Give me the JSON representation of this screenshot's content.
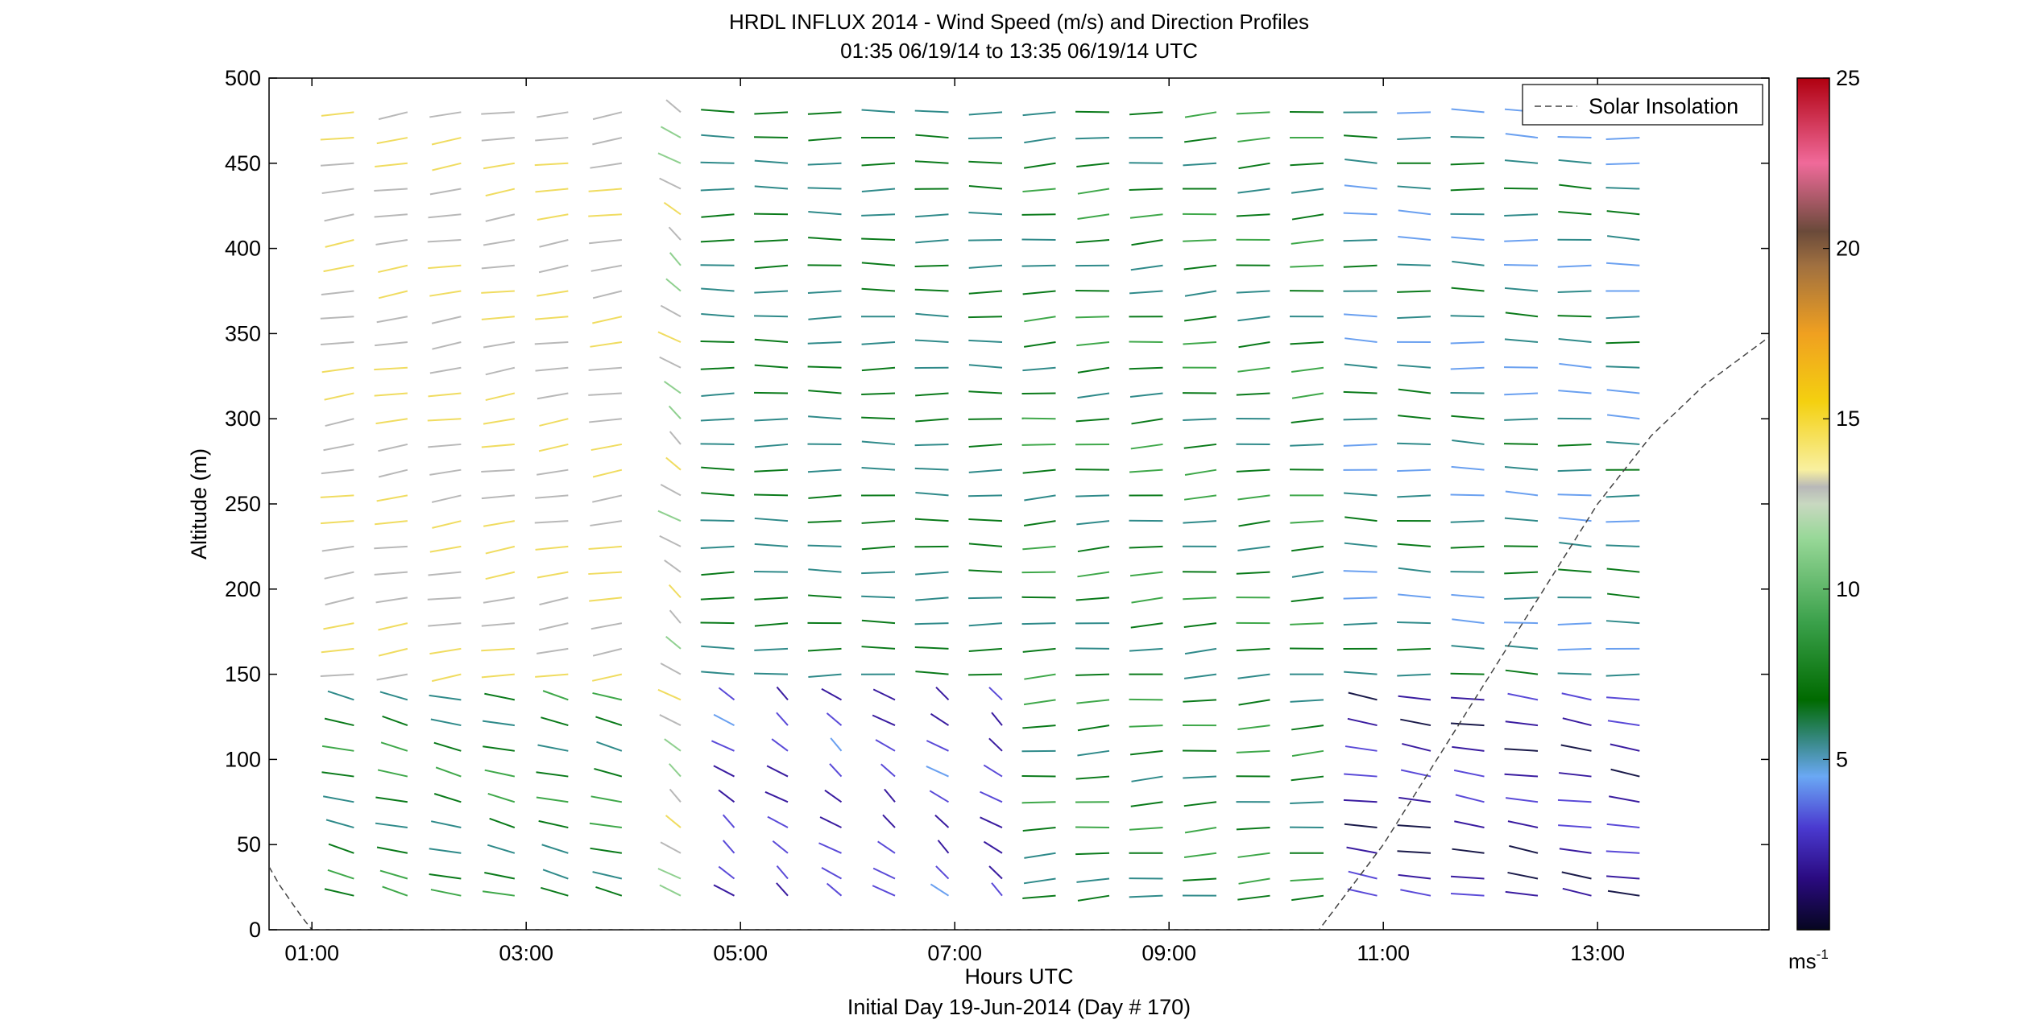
{
  "chart_data": {
    "type": "wind-barb-profile",
    "title": "HRDL INFLUX 2014 - Wind Speed (m/s) and Direction Profiles",
    "subtitle": "01:35 06/19/14 to 13:35 06/19/14  UTC",
    "xlabel": "Hours UTC",
    "xlabel2": "Initial Day 19-Jun-2014 (Day # 170)",
    "ylabel": "Altitude (m)",
    "x_ticks": [
      "01:00",
      "03:00",
      "05:00",
      "07:00",
      "09:00",
      "11:00",
      "13:00"
    ],
    "x_tick_hours": [
      1,
      3,
      5,
      7,
      9,
      11,
      13
    ],
    "xlim_hours": [
      0.6,
      14.6
    ],
    "y_ticks": [
      0,
      50,
      100,
      150,
      200,
      250,
      300,
      350,
      400,
      450,
      500
    ],
    "ylim": [
      0,
      500
    ],
    "legend": {
      "label": "Solar Insolation",
      "placement": "top-right"
    },
    "colorbar": {
      "ticks": [
        5,
        10,
        15,
        20,
        25
      ],
      "unit": "ms",
      "unit_exp": "-1",
      "range": [
        0,
        25
      ]
    },
    "profile_hours": [
      1.55,
      2.05,
      2.55,
      3.05,
      3.55,
      4.05,
      4.6,
      5.1,
      5.6,
      6.1,
      6.6,
      7.1,
      7.6,
      8.1,
      8.6,
      9.1,
      9.6,
      10.1,
      10.6,
      11.1,
      11.6,
      12.1,
      12.6,
      13.1,
      13.55
    ],
    "altitudes_m": [
      20,
      30,
      45,
      60,
      75,
      90,
      105,
      120,
      135,
      150,
      165,
      180,
      195,
      210,
      225,
      240,
      255,
      270,
      285,
      300,
      315,
      330,
      345,
      360,
      375,
      390,
      405,
      420,
      435,
      450,
      465,
      480
    ],
    "wind_direction_pattern": [
      {
        "hours": [
          1.5,
          4.2
        ],
        "below_150m_deg": 300,
        "above_150m_deg": 250,
        "speed_low_ms": 9,
        "speed_high_ms": 15
      },
      {
        "hours": [
          4.4,
          4.7
        ],
        "deg": 330,
        "speed_ms": 14
      },
      {
        "hours": [
          5.0,
          8.0
        ],
        "below_150m_deg": 330,
        "above_150m_deg": 270,
        "speed_low_ms": 3,
        "speed_high_ms": 8
      },
      {
        "hours": [
          8.0,
          11.0
        ],
        "deg": 260,
        "speed_ms": 9
      },
      {
        "hours": [
          11.0,
          13.6
        ],
        "below_150m_deg": 290,
        "above_150m_deg": 275,
        "speed_low_ms": 2,
        "speed_high_ms": 7
      }
    ],
    "solar_insolation_curve": {
      "x_hours": [
        0.6,
        0.7,
        0.8,
        0.9,
        1.0,
        10.4,
        11.0,
        11.5,
        12.0,
        12.5,
        13.0,
        13.5,
        14.0,
        14.6
      ],
      "y_m": [
        37,
        26,
        17,
        8,
        0,
        0,
        50,
        100,
        150,
        200,
        250,
        290,
        320,
        348
      ]
    },
    "speed_palette": [
      "#1a1a4a",
      "#3a1ca0",
      "#5a4ad8",
      "#6aa0f0",
      "#2f8a8a",
      "#0a7a1a",
      "#3fa84a",
      "#8fd08f",
      "#b8b8b8",
      "#f0dc60",
      "#f0c020",
      "#e8a020",
      "#a06830",
      "#e0506a",
      "#b01020"
    ]
  }
}
